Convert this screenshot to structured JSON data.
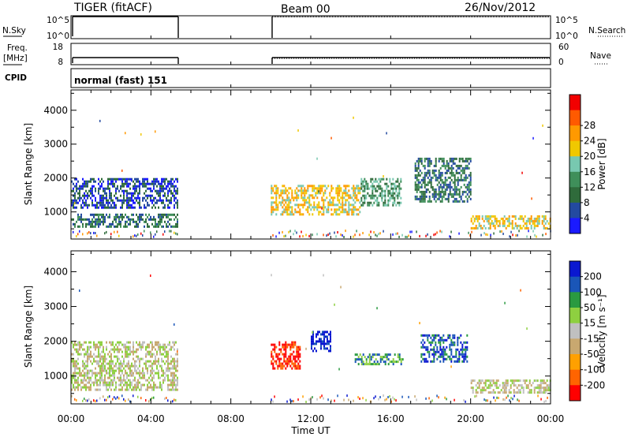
{
  "header": {
    "title": "TIGER (fitACF)",
    "beam": "Beam 00",
    "date": "26/Nov/2012"
  },
  "panels": {
    "nsky": {
      "label": "N.Sky",
      "ticks_left": [
        "10^5",
        "10^0"
      ],
      "ticks_right": [
        "10^5",
        "10^0"
      ],
      "right_label": "N.Search"
    },
    "freq": {
      "label_line1": "Freq.",
      "label_line2": "[MHz]",
      "ticks_left": [
        "18",
        "8"
      ],
      "ticks_right": [
        "60",
        "0"
      ],
      "right_label": "Nave"
    },
    "cpid": {
      "label": "CPID",
      "value": "normal (fast) 151"
    }
  },
  "time_axis": {
    "label": "Time UT",
    "ticks": [
      "00:00",
      "04:00",
      "08:00",
      "12:00",
      "16:00",
      "20:00",
      "00:00"
    ]
  },
  "colors": {
    "power": [
      "#1a1aff",
      "#234aa0",
      "#2f6b3b",
      "#3f8f5a",
      "#78c8b0",
      "#f0c800",
      "#ff9900",
      "#ff5a00",
      "#f20000"
    ],
    "velocity": [
      "#0a18d0",
      "#1a56b8",
      "#2a9a40",
      "#8ed040",
      "#c0c0c0",
      "#c8a870",
      "#ffa000",
      "#ff6400",
      "#ff0000"
    ]
  },
  "chart_data": [
    {
      "type": "heatmap",
      "quantity": "power",
      "ylabel": "Slant Range [km]",
      "yticks": [
        1000,
        2000,
        3000,
        4000
      ],
      "ylim": [
        200,
        4600
      ],
      "xlim": [
        0,
        24
      ],
      "colorbar": {
        "label": "Power [dB]",
        "ticks": [
          "4",
          "8",
          "12",
          "16",
          "20",
          "24",
          "28"
        ],
        "range": [
          0,
          32
        ]
      },
      "data_gap_hours": [
        5.3,
        10.0
      ],
      "echo_regions": [
        {
          "t": [
            0.0,
            5.3
          ],
          "range_km": [
            1150,
            2000
          ],
          "level": 5
        },
        {
          "t": [
            0.0,
            5.3
          ],
          "range_km": [
            600,
            950
          ],
          "level": 8
        },
        {
          "t": [
            10.0,
            14.5
          ],
          "range_km": [
            900,
            1800
          ],
          "level": 20
        },
        {
          "t": [
            14.5,
            16.5
          ],
          "range_km": [
            1200,
            2000
          ],
          "level": 14
        },
        {
          "t": [
            17.2,
            20.0
          ],
          "range_km": [
            1300,
            2600
          ],
          "level": 10
        },
        {
          "t": [
            20.0,
            24.0
          ],
          "range_km": [
            500,
            900
          ],
          "level": 18
        }
      ]
    },
    {
      "type": "heatmap",
      "quantity": "velocity",
      "ylabel": "Slant Range [km]",
      "yticks": [
        1000,
        2000,
        3000,
        4000
      ],
      "ylim": [
        200,
        4600
      ],
      "xlim": [
        0,
        24
      ],
      "colorbar": {
        "label": "Velocity [m s⁻¹]",
        "ticks": [
          "200",
          "100",
          "50",
          "15",
          "-15",
          "-50",
          "-100",
          "-200"
        ],
        "range": [
          -250,
          250
        ]
      },
      "data_gap_hours": [
        5.3,
        10.0
      ],
      "echo_regions": [
        {
          "t": [
            0.0,
            5.3
          ],
          "range_km": [
            600,
            2000
          ],
          "velocity": 0
        },
        {
          "t": [
            10.0,
            11.5
          ],
          "range_km": [
            1200,
            2000
          ],
          "velocity": -200
        },
        {
          "t": [
            12.0,
            13.0
          ],
          "range_km": [
            1700,
            2300
          ],
          "velocity": 200
        },
        {
          "t": [
            14.2,
            16.6
          ],
          "range_km": [
            1350,
            1650
          ],
          "velocity": 120
        },
        {
          "t": [
            17.5,
            19.8
          ],
          "range_km": [
            1400,
            2200
          ],
          "velocity": 150
        },
        {
          "t": [
            20.0,
            24.0
          ],
          "range_km": [
            500,
            900
          ],
          "velocity": 0
        }
      ]
    }
  ]
}
